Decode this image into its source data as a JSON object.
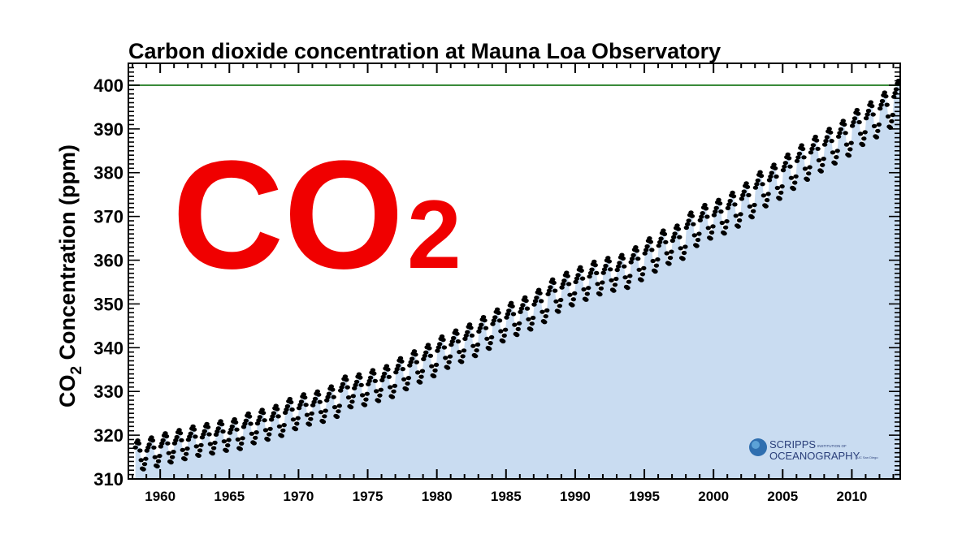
{
  "chart_data": {
    "type": "scatter",
    "title": "Carbon dioxide concentration at Mauna Loa Observatory",
    "ylabel_main": "CO",
    "ylabel_sub": "2",
    "ylabel_rest": " Concentration (ppm)",
    "xlim": [
      1957.7,
      2013.5
    ],
    "ylim": [
      310,
      405
    ],
    "xticks": [
      1960,
      1965,
      1970,
      1975,
      1980,
      1985,
      1990,
      1995,
      2000,
      2005,
      2010
    ],
    "yticks": [
      310,
      320,
      330,
      340,
      350,
      360,
      370,
      380,
      390,
      400
    ],
    "reference_line": {
      "y": 400,
      "color": "#3a8a3a"
    },
    "grid": false,
    "series": [
      {
        "years": [
          1958,
          1959,
          1960,
          1961,
          1962,
          1963,
          1964,
          1965,
          1966,
          1967,
          1968,
          1969,
          1970,
          1971,
          1972,
          1973,
          1974,
          1975,
          1976,
          1977,
          1978,
          1979,
          1980,
          1981,
          1982,
          1983,
          1984,
          1985,
          1986,
          1987,
          1988,
          1989,
          1990,
          1991,
          1992,
          1993,
          1994,
          1995,
          1996,
          1997,
          1998,
          1999,
          2000,
          2001,
          2002,
          2003,
          2004,
          2005,
          2006,
          2007,
          2008,
          2009,
          2010,
          2011,
          2012,
          2013
        ],
        "annual_mean_ppm": [
          315.3,
          315.98,
          316.91,
          317.64,
          318.45,
          318.99,
          319.62,
          320.04,
          321.37,
          322.18,
          323.05,
          324.62,
          325.68,
          326.32,
          327.46,
          329.68,
          330.19,
          331.12,
          332.03,
          333.84,
          335.41,
          336.84,
          338.76,
          340.12,
          341.48,
          343.15,
          344.87,
          346.35,
          347.61,
          349.31,
          351.69,
          353.2,
          354.45,
          355.7,
          356.54,
          357.21,
          358.96,
          360.97,
          362.74,
          363.88,
          366.84,
          368.54,
          369.71,
          371.32,
          373.45,
          375.98,
          377.7,
          379.98,
          382.09,
          384.02,
          385.83,
          387.64,
          390.1,
          391.85,
          394.06,
          396.74
        ],
        "monthly_seasonal_offset_ppm": [
          0.5,
          1.2,
          1.9,
          3.0,
          3.5,
          2.8,
          1.2,
          -1.0,
          -2.9,
          -3.1,
          -1.9,
          -0.7
        ],
        "first_month": "1958-03",
        "last_month": "2013-05",
        "marker_color": "#000000"
      }
    ],
    "fill_color": "#c9dcf1",
    "annotation": {
      "main": "CO",
      "sub": "2",
      "color": "#f00000"
    }
  },
  "logo": {
    "line1": "SCRIPPS",
    "line1_small": "INSTITUTION OF",
    "line2": "OCEANOGRAPHY",
    "line2_small": "UC San Diego"
  }
}
